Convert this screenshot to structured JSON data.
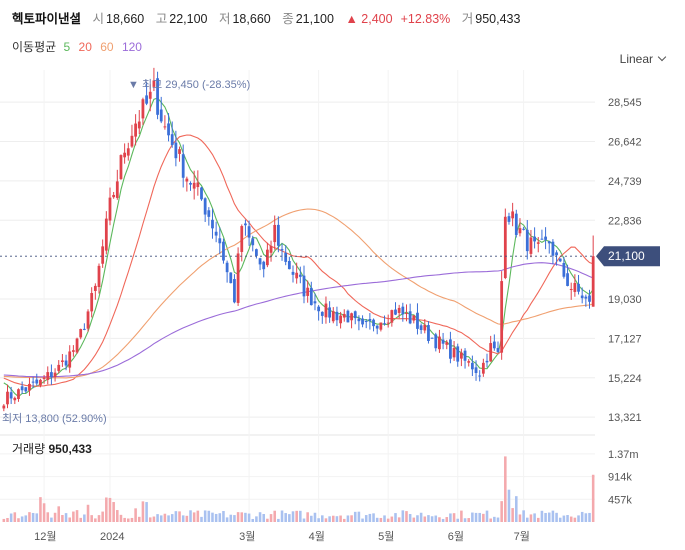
{
  "header": {
    "name": "헥토파이낸셜",
    "open_label": "시",
    "open": "18,660",
    "high_label": "고",
    "high": "22,100",
    "low_label": "저",
    "low": "18,660",
    "close_label": "종",
    "close": "21,100",
    "change": "▲ 2,400",
    "change_pct": "+12.83%",
    "volume_label": "거",
    "volume": "950,433"
  },
  "ma_legend": {
    "title": "이동평균",
    "periods": [
      "5",
      "20",
      "60",
      "120"
    ]
  },
  "scale_toggle": "Linear",
  "volume_title": {
    "label": "거래량",
    "value": "950,433"
  },
  "colors": {
    "up": "#e0424b",
    "down": "#3b6fd8",
    "ma5": "#5cb85c",
    "ma20": "#f0685a",
    "ma60": "#f0a070",
    "ma120": "#9b6cd9",
    "annotation": "#6a7ba8",
    "current": "#3d4f7c"
  },
  "chart_data": {
    "type": "candlestick",
    "price_axis": {
      "ticks": [
        "28,545",
        "26,642",
        "24,739",
        "22,836",
        "19,030",
        "17,127",
        "15,224",
        "13,321"
      ],
      "range": [
        12700,
        30100
      ]
    },
    "volume_axis": {
      "ticks": [
        "1.37m",
        "914k",
        "457k"
      ],
      "range": [
        0,
        1650000
      ]
    },
    "time_axis": {
      "labels": [
        "12월",
        "2024",
        "3월",
        "4월",
        "5월",
        "6월",
        "7월"
      ]
    },
    "current_price": "21,100",
    "annotations": {
      "high": "▼ 최고 29,450 (-28.35%)",
      "low": "최저 13,800 (52.90%)"
    },
    "moving_averages": [
      "5",
      "20",
      "60",
      "120"
    ],
    "volume_last": 950433,
    "close_path": [
      [
        0,
        14200
      ],
      [
        5,
        14600
      ],
      [
        10,
        15000
      ],
      [
        15,
        15700
      ],
      [
        20,
        16800
      ],
      [
        25,
        19500
      ],
      [
        29,
        23500
      ],
      [
        33,
        26300
      ],
      [
        36,
        27600
      ],
      [
        39,
        28400
      ],
      [
        41,
        29100
      ],
      [
        44,
        27300
      ],
      [
        47,
        26200
      ],
      [
        50,
        25000
      ],
      [
        53,
        24200
      ],
      [
        56,
        23100
      ],
      [
        59,
        21800
      ],
      [
        61,
        20300
      ],
      [
        63,
        19100
      ],
      [
        65,
        22600
      ],
      [
        68,
        21500
      ],
      [
        71,
        20300
      ],
      [
        74,
        22400
      ],
      [
        76,
        21300
      ],
      [
        79,
        20300
      ],
      [
        82,
        19500
      ],
      [
        85,
        18900
      ],
      [
        88,
        18400
      ],
      [
        91,
        18300
      ],
      [
        94,
        18200
      ],
      [
        96,
        17800
      ],
      [
        98,
        17500
      ],
      [
        101,
        17900
      ],
      [
        104,
        18200
      ],
      [
        107,
        18500
      ],
      [
        110,
        18200
      ],
      [
        113,
        17800
      ],
      [
        116,
        17300
      ],
      [
        119,
        16900
      ],
      [
        122,
        16500
      ],
      [
        125,
        16100
      ],
      [
        128,
        15800
      ],
      [
        130,
        15500
      ],
      [
        133,
        16700
      ],
      [
        135,
        16300
      ],
      [
        137,
        23500
      ],
      [
        140,
        22500
      ],
      [
        143,
        21800
      ],
      [
        146,
        21300
      ],
      [
        149,
        21800
      ],
      [
        152,
        20500
      ],
      [
        155,
        19600
      ],
      [
        158,
        19200
      ],
      [
        160,
        18700
      ],
      [
        161,
        21100
      ]
    ]
  }
}
